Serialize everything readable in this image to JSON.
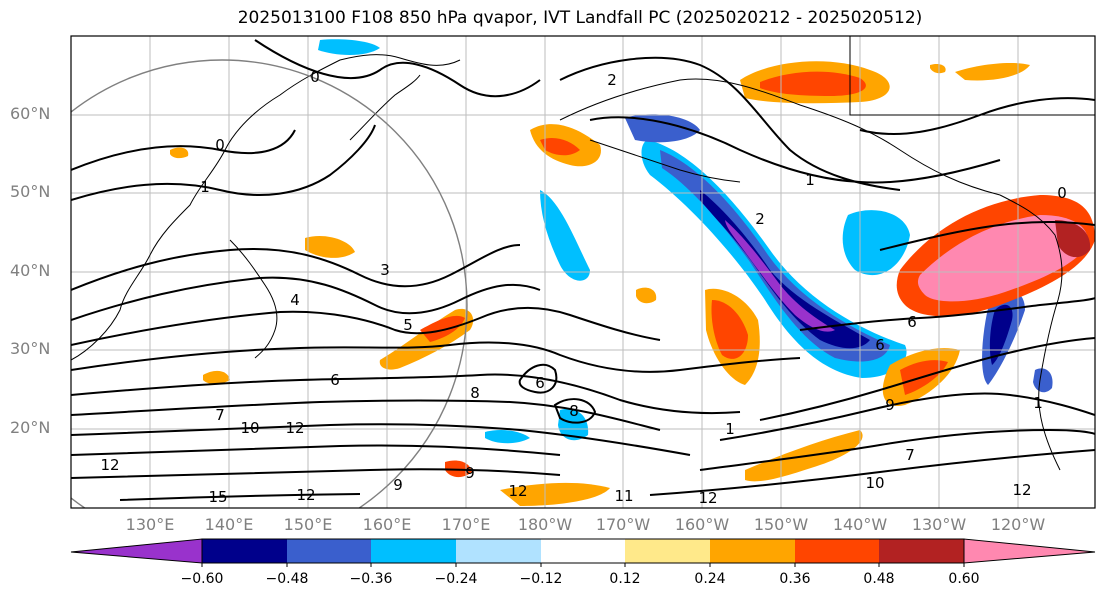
{
  "title": "2025013100 F108 850 hPa qvapor, IVT Landfall PC (2025020212 - 2025020512)",
  "latitude_labels": [
    "60°N",
    "50°N",
    "40°N",
    "30°N",
    "20°N"
  ],
  "longitude_labels": [
    "130°E",
    "140°E",
    "150°E",
    "160°E",
    "170°E",
    "180°W",
    "170°W",
    "160°W",
    "150°W",
    "140°W",
    "130°W",
    "120°W"
  ],
  "colorbar": {
    "tick_labels": [
      "−0.60",
      "−0.48",
      "−0.36",
      "−0.24",
      "−0.12",
      "0.12",
      "0.24",
      "0.36",
      "0.48",
      "0.60"
    ],
    "colors": [
      "#9932cc",
      "#00008b",
      "#3a5fcd",
      "#00bfff",
      "#b0e2ff",
      "#ffffff",
      "#ffe98a",
      "#ffa500",
      "#ff4500",
      "#b22222",
      "#ff88b0"
    ]
  },
  "contour_labels": [
    "0",
    "0",
    "1",
    "2",
    "1",
    "0",
    "1",
    "3",
    "4",
    "5",
    "6",
    "7",
    "8",
    "9",
    "10",
    "12",
    "12",
    "12",
    "15",
    "6",
    "8",
    "9",
    "11",
    "12",
    "1",
    "6",
    "7",
    "9",
    "10",
    "12",
    "12",
    "2",
    "6"
  ]
}
